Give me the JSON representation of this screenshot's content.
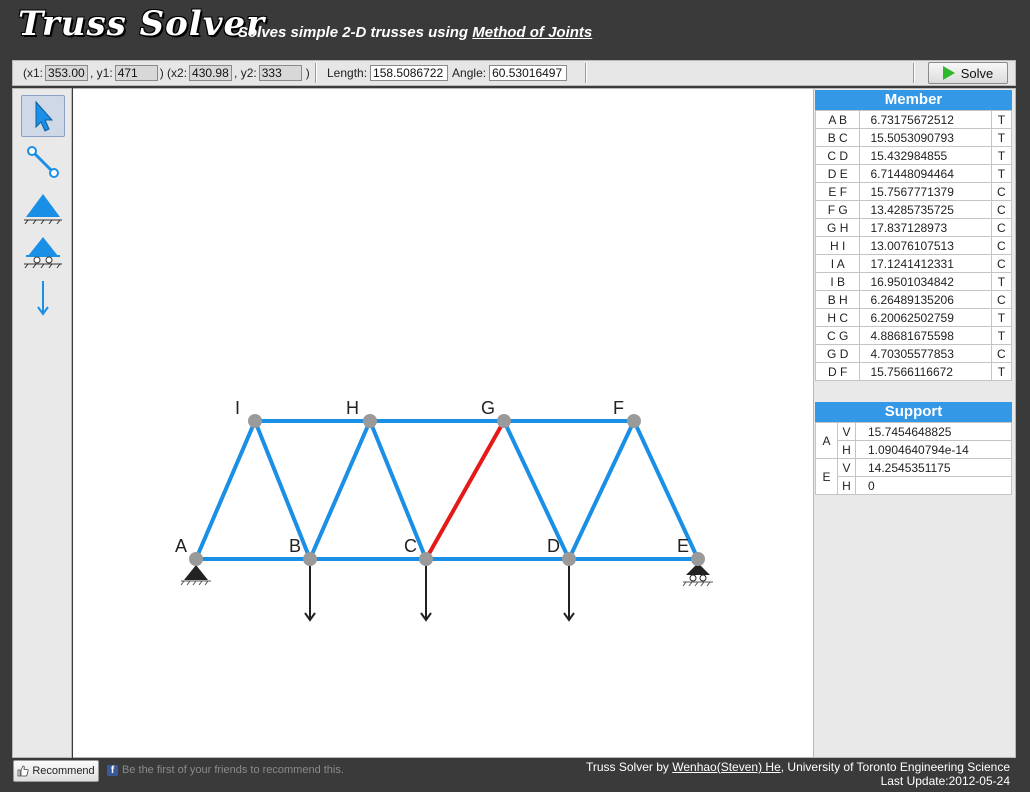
{
  "header": {
    "logo": "Truss Solver",
    "tagline_prefix": "Solves simple 2-D trusses using ",
    "tagline_link": "Method of Joints"
  },
  "toolbar": {
    "x1_label": "(x1:",
    "x1_value": "353.00",
    "y1_label": ", y1:",
    "y1_value": "471",
    "x2_label": ") (x2:",
    "x2_value": "430.98",
    "y2_label": ", y2:",
    "y2_value": "333",
    "close_paren": ")",
    "length_label": "Length:",
    "length_value": "158.5086722",
    "angle_label": "Angle:",
    "angle_value": "60.53016497",
    "solve_label": "Solve"
  },
  "tools": [
    {
      "name": "select-tool",
      "icon": "pointer-icon"
    },
    {
      "name": "member-tool",
      "icon": "member-link-icon"
    },
    {
      "name": "pin-support-tool",
      "icon": "pin-support-icon"
    },
    {
      "name": "roller-support-tool",
      "icon": "roller-support-icon"
    },
    {
      "name": "load-tool",
      "icon": "load-arrow-icon"
    }
  ],
  "truss": {
    "joints": [
      "A",
      "B",
      "C",
      "D",
      "E",
      "F",
      "G",
      "H",
      "I"
    ],
    "member_color": "#1a8fe6",
    "selected_color": "#e61919",
    "joint_color": "#9a9a9a"
  },
  "member_table": {
    "title": "Member",
    "rows": [
      {
        "name": "A B",
        "value": "6.73175672512",
        "type": "T"
      },
      {
        "name": "B C",
        "value": "15.5053090793",
        "type": "T"
      },
      {
        "name": "C D",
        "value": "15.432984855",
        "type": "T"
      },
      {
        "name": "D E",
        "value": "6.71448094464",
        "type": "T"
      },
      {
        "name": "E F",
        "value": "15.7567771379",
        "type": "C"
      },
      {
        "name": "F G",
        "value": "13.4285735725",
        "type": "C"
      },
      {
        "name": "G H",
        "value": "17.837128973",
        "type": "C"
      },
      {
        "name": "H I",
        "value": "13.0076107513",
        "type": "C"
      },
      {
        "name": "I A",
        "value": "17.1241412331",
        "type": "C"
      },
      {
        "name": "I B",
        "value": "16.9501034842",
        "type": "T"
      },
      {
        "name": "B H",
        "value": "6.26489135206",
        "type": "C"
      },
      {
        "name": "H C",
        "value": "6.20062502759",
        "type": "T"
      },
      {
        "name": "C G",
        "value": "4.88681675598",
        "type": "T"
      },
      {
        "name": "G D",
        "value": "4.70305577853",
        "type": "C"
      },
      {
        "name": "D F",
        "value": "15.7566116672",
        "type": "T"
      }
    ]
  },
  "support_table": {
    "title": "Support",
    "rows": [
      {
        "node": "A",
        "v": "15.7454648825",
        "h": "1.0904640794e-14"
      },
      {
        "node": "E",
        "v": "14.2545351175",
        "h": "0"
      }
    ],
    "v_label": "V",
    "h_label": "H"
  },
  "footer": {
    "recommend_label": "Recommend",
    "fb_text": "Be the first of your friends to recommend this.",
    "credit_prefix": "Truss Solver by ",
    "credit_author": "Wenhao(Steven) He",
    "credit_suffix": ", University of Toronto Engineering Science",
    "last_update": "Last Update:2012-05-24"
  }
}
